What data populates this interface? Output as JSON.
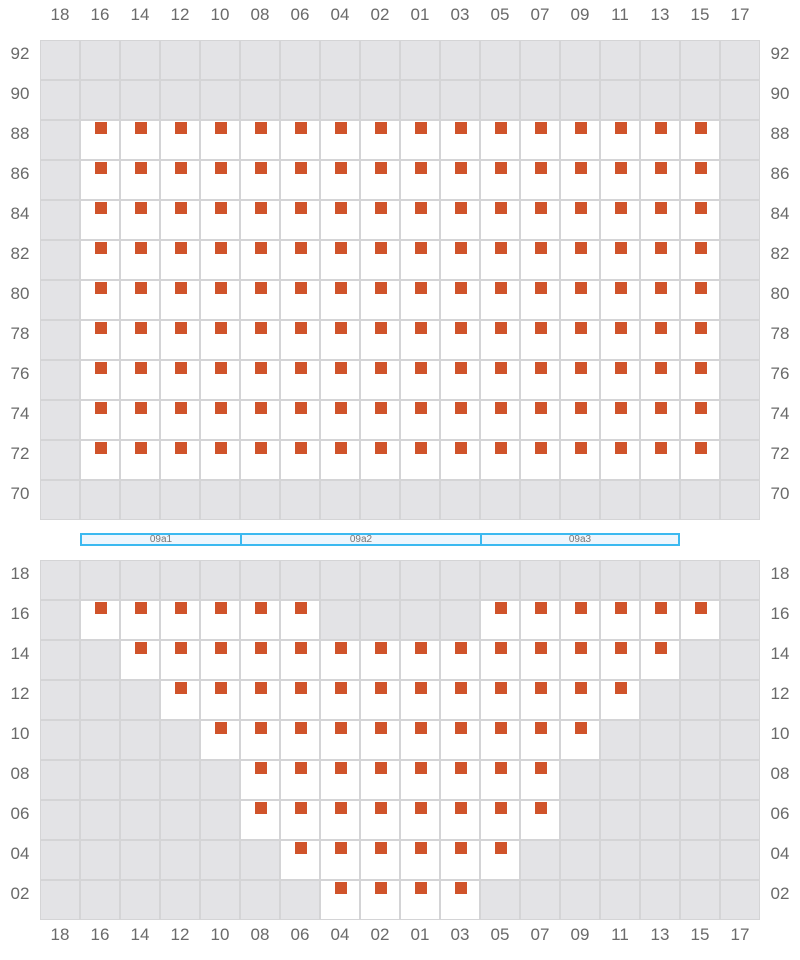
{
  "columns": [
    "18",
    "16",
    "14",
    "12",
    "10",
    "08",
    "06",
    "04",
    "02",
    "01",
    "03",
    "05",
    "07",
    "09",
    "11",
    "13",
    "15",
    "17"
  ],
  "colors": {
    "seat": "#d0532a",
    "unavailable": "#e3e3e6",
    "available": "#ffffff",
    "section_border": "#3bb9f0"
  },
  "upper_block": {
    "rows": [
      {
        "label": "92",
        "available": []
      },
      {
        "label": "90",
        "available": []
      },
      {
        "label": "88",
        "available": [
          "16",
          "14",
          "12",
          "10",
          "08",
          "06",
          "04",
          "02",
          "01",
          "03",
          "05",
          "07",
          "09",
          "11",
          "13",
          "15"
        ]
      },
      {
        "label": "86",
        "available": [
          "16",
          "14",
          "12",
          "10",
          "08",
          "06",
          "04",
          "02",
          "01",
          "03",
          "05",
          "07",
          "09",
          "11",
          "13",
          "15"
        ]
      },
      {
        "label": "84",
        "available": [
          "16",
          "14",
          "12",
          "10",
          "08",
          "06",
          "04",
          "02",
          "01",
          "03",
          "05",
          "07",
          "09",
          "11",
          "13",
          "15"
        ]
      },
      {
        "label": "82",
        "available": [
          "16",
          "14",
          "12",
          "10",
          "08",
          "06",
          "04",
          "02",
          "01",
          "03",
          "05",
          "07",
          "09",
          "11",
          "13",
          "15"
        ]
      },
      {
        "label": "80",
        "available": [
          "16",
          "14",
          "12",
          "10",
          "08",
          "06",
          "04",
          "02",
          "01",
          "03",
          "05",
          "07",
          "09",
          "11",
          "13",
          "15"
        ]
      },
      {
        "label": "78",
        "available": [
          "16",
          "14",
          "12",
          "10",
          "08",
          "06",
          "04",
          "02",
          "01",
          "03",
          "05",
          "07",
          "09",
          "11",
          "13",
          "15"
        ]
      },
      {
        "label": "76",
        "available": [
          "16",
          "14",
          "12",
          "10",
          "08",
          "06",
          "04",
          "02",
          "01",
          "03",
          "05",
          "07",
          "09",
          "11",
          "13",
          "15"
        ]
      },
      {
        "label": "74",
        "available": [
          "16",
          "14",
          "12",
          "10",
          "08",
          "06",
          "04",
          "02",
          "01",
          "03",
          "05",
          "07",
          "09",
          "11",
          "13",
          "15"
        ]
      },
      {
        "label": "72",
        "available": [
          "16",
          "14",
          "12",
          "10",
          "08",
          "06",
          "04",
          "02",
          "01",
          "03",
          "05",
          "07",
          "09",
          "11",
          "13",
          "15"
        ]
      },
      {
        "label": "70",
        "available": []
      }
    ]
  },
  "sections": [
    {
      "label": "09a1",
      "from": "16",
      "to": "10"
    },
    {
      "label": "09a2",
      "from": "08",
      "to": "03"
    },
    {
      "label": "09a3",
      "from": "05",
      "to": "13"
    }
  ],
  "lower_block": {
    "rows": [
      {
        "label": "18",
        "available": []
      },
      {
        "label": "16",
        "available": [
          "16",
          "14",
          "12",
          "10",
          "08",
          "06",
          "05",
          "07",
          "09",
          "11",
          "13",
          "15"
        ]
      },
      {
        "label": "14",
        "available": [
          "14",
          "12",
          "10",
          "08",
          "06",
          "04",
          "02",
          "01",
          "03",
          "05",
          "07",
          "09",
          "11",
          "13"
        ]
      },
      {
        "label": "12",
        "available": [
          "12",
          "10",
          "08",
          "06",
          "04",
          "02",
          "01",
          "03",
          "05",
          "07",
          "09",
          "11"
        ]
      },
      {
        "label": "10",
        "available": [
          "10",
          "08",
          "06",
          "04",
          "02",
          "01",
          "03",
          "05",
          "07",
          "09"
        ]
      },
      {
        "label": "08",
        "available": [
          "08",
          "06",
          "04",
          "02",
          "01",
          "03",
          "05",
          "07"
        ]
      },
      {
        "label": "06",
        "available": [
          "08",
          "06",
          "04",
          "02",
          "01",
          "03",
          "05",
          "07"
        ]
      },
      {
        "label": "04",
        "available": [
          "06",
          "04",
          "02",
          "01",
          "03",
          "05"
        ]
      },
      {
        "label": "02",
        "available": [
          "04",
          "02",
          "01",
          "03"
        ]
      }
    ]
  }
}
